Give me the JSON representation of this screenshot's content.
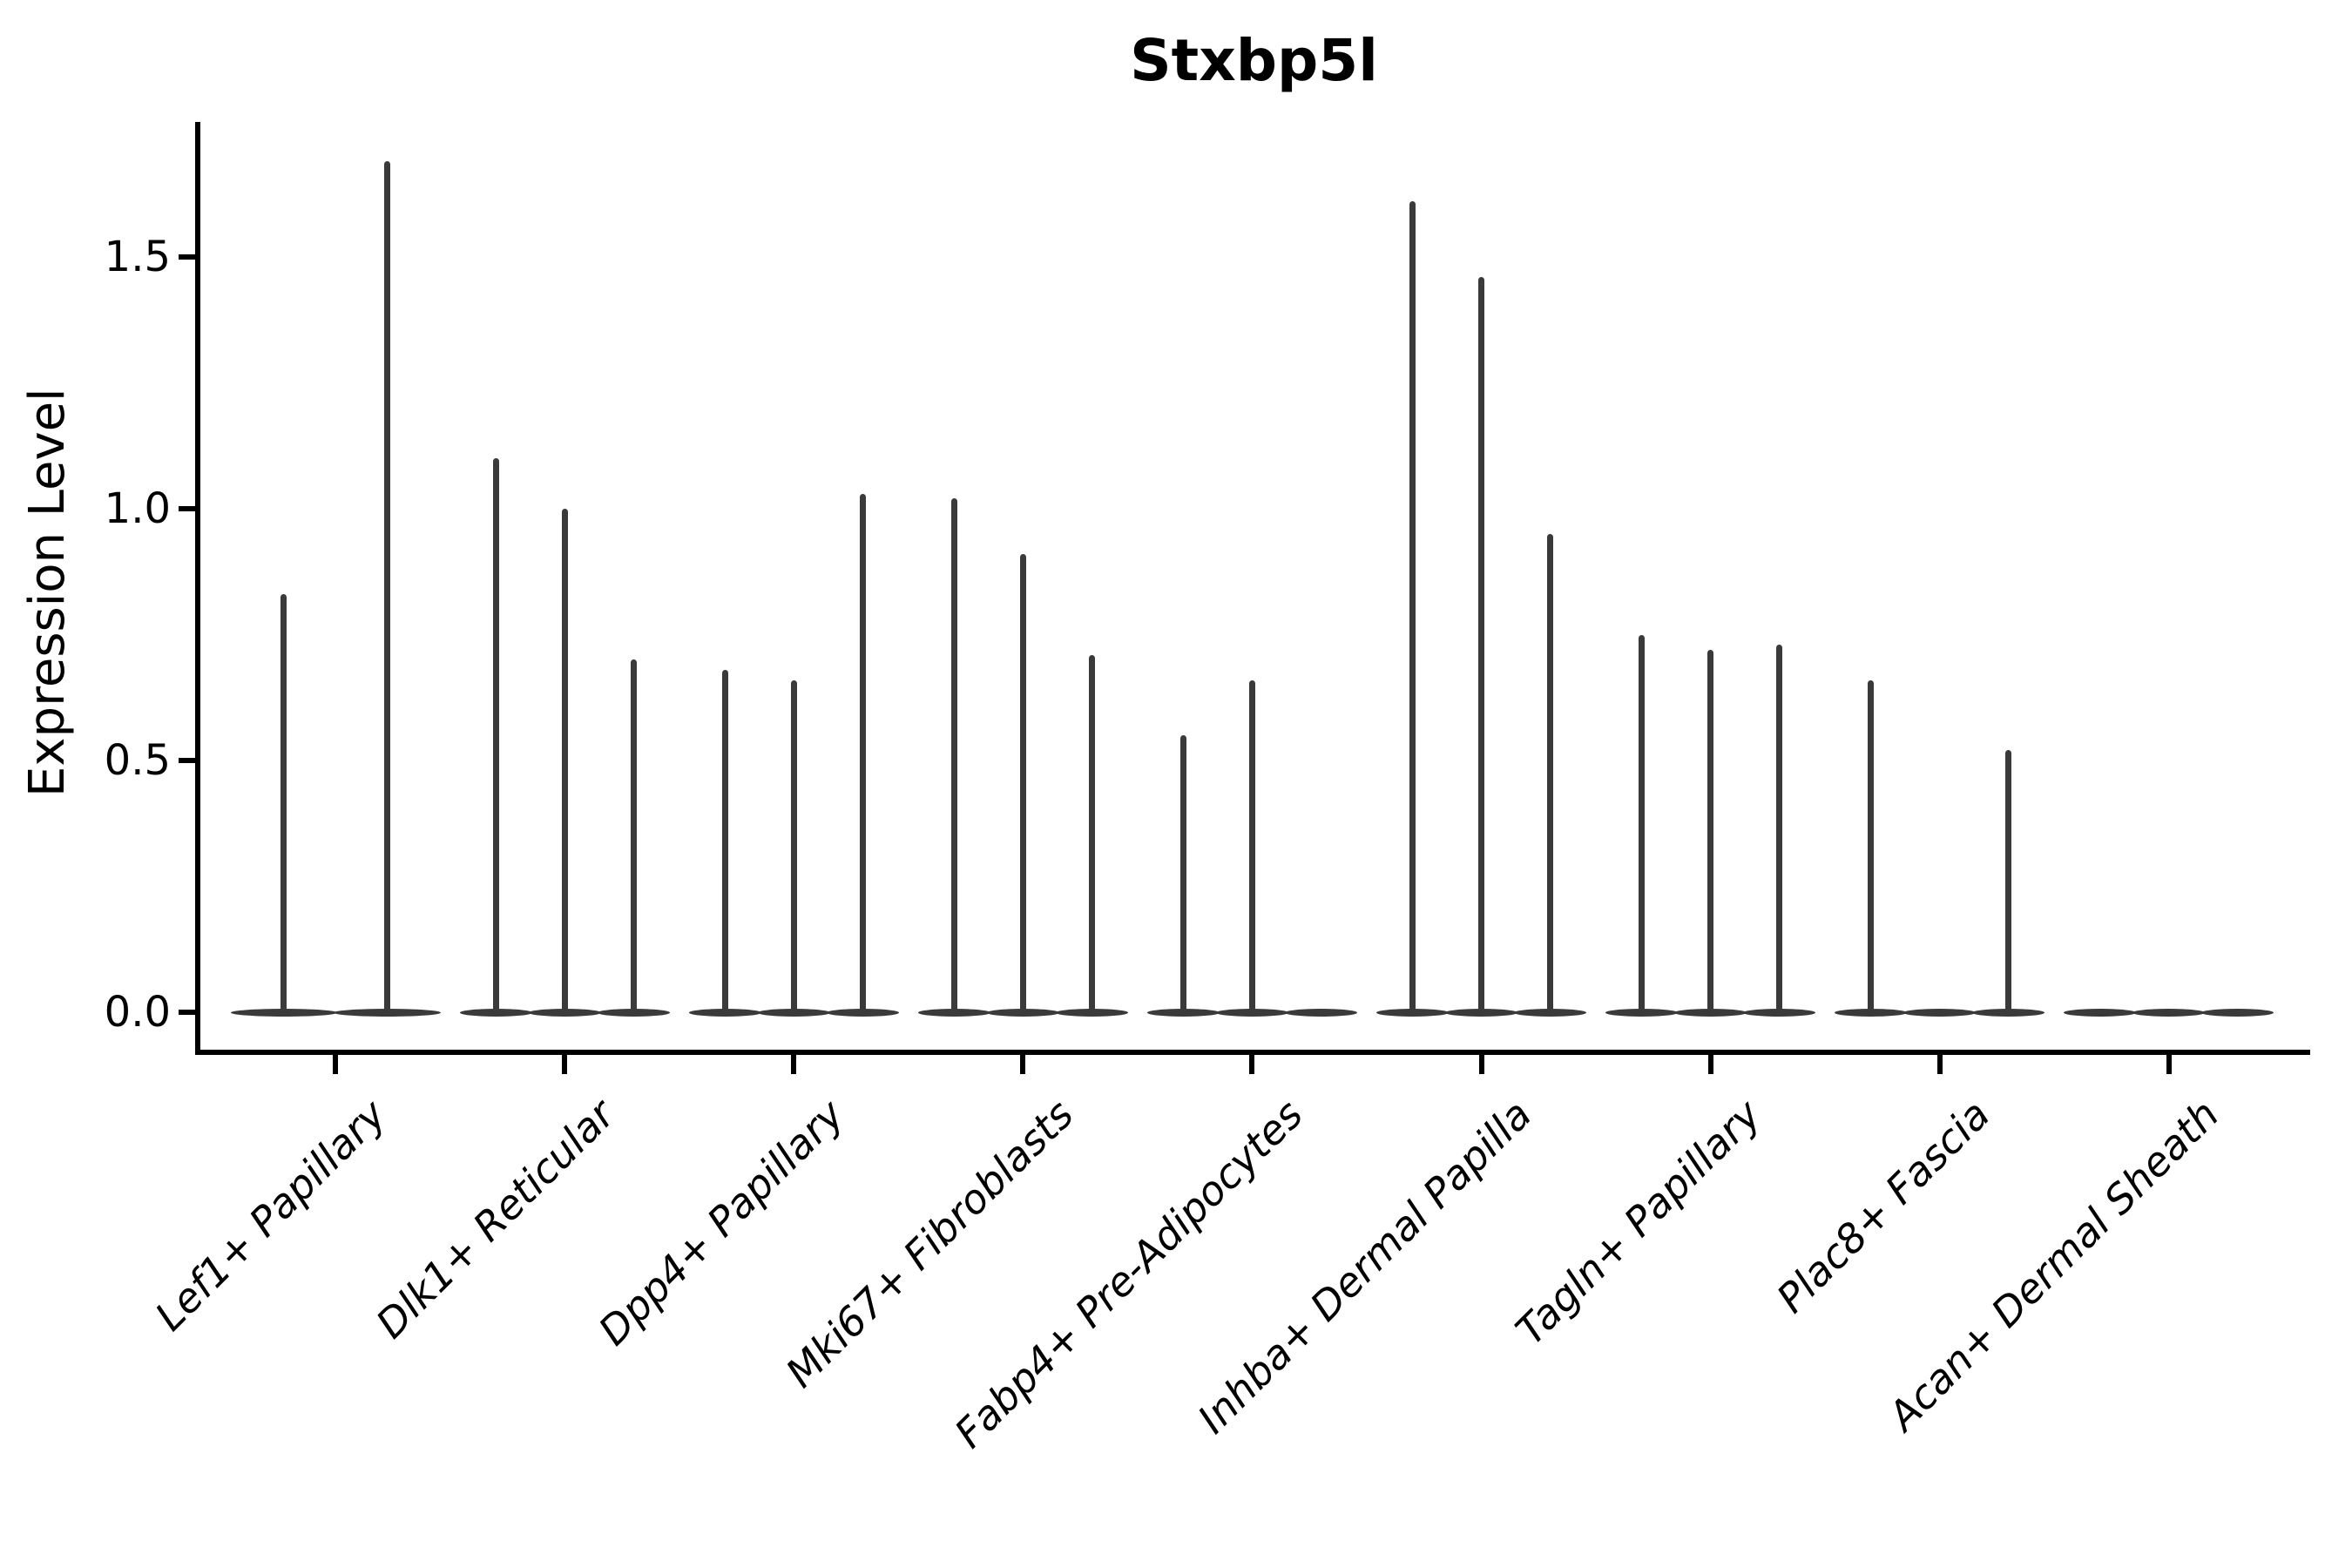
{
  "title": "Stxbp5l",
  "y_axis": {
    "label": "Expression Level",
    "tick_labels": [
      "0.0",
      "0.5",
      "1.0",
      "1.5"
    ]
  },
  "x_axis": {
    "tick_labels": [
      "Lef1+ Papillary",
      "Dlk1+ Reticular",
      "Dpp4+ Papillary",
      "Mki67+ Fibroblasts",
      "Fabp4+ Pre-Adipocytes",
      "Inhba+ Dermal Papilla",
      "Tagln+ Papillary",
      "Plac8+ Fascia",
      "Acan+ Dermal Sheath"
    ]
  },
  "chart_data": {
    "type": "violin",
    "title": "Stxbp5l",
    "xlabel": "",
    "ylabel": "Expression Level",
    "ylim": [
      -0.08,
      1.77
    ],
    "yticks": [
      0.0,
      0.5,
      1.0,
      1.5
    ],
    "grid": false,
    "legend": "none",
    "categories": [
      "Lef1+ Papillary",
      "Dlk1+ Reticular",
      "Dpp4+ Papillary",
      "Mki67+ Fibroblasts",
      "Fabp4+ Pre-Adipocytes",
      "Inhba+ Dermal Papilla",
      "Tagln+ Papillary",
      "Plac8+ Fascia",
      "Acan+ Dermal Sheath"
    ],
    "series": [
      {
        "category": "Lef1+ Papillary",
        "n_violins": 2,
        "spike_max_expression": [
          0.83,
          1.69
        ]
      },
      {
        "category": "Dlk1+ Reticular",
        "n_violins": 3,
        "spike_max_expression": [
          1.1,
          1.0,
          0.7
        ]
      },
      {
        "category": "Dpp4+ Papillary",
        "n_violins": 3,
        "spike_max_expression": [
          0.68,
          0.66,
          1.03
        ]
      },
      {
        "category": "Mki67+ Fibroblasts",
        "n_violins": 3,
        "spike_max_expression": [
          1.02,
          0.91,
          0.71
        ]
      },
      {
        "category": "Fabp4+ Pre-Adipocytes",
        "n_violins": 3,
        "spike_max_expression": [
          0.55,
          0.66,
          0
        ]
      },
      {
        "category": "Inhba+ Dermal Papilla",
        "n_violins": 3,
        "spike_max_expression": [
          1.61,
          1.46,
          0.95
        ]
      },
      {
        "category": "Tagln+ Papillary",
        "n_violins": 3,
        "spike_max_expression": [
          0.75,
          0.72,
          0.73
        ]
      },
      {
        "category": "Plac8+ Fascia",
        "n_violins": 3,
        "spike_max_expression": [
          0.66,
          0,
          0.52
        ]
      },
      {
        "category": "Acan+ Dermal Sheath",
        "n_violins": 3,
        "spike_max_expression": [
          0,
          0,
          0
        ]
      }
    ],
    "style": {
      "violin_color": "#3a3a3a",
      "axis_color": "#000000",
      "background": "#ffffff"
    },
    "note": "Expression is mostly zero in every violin: each violin collapses to a flat base lens at 0 with a thin spike reaching its maximum expression value; zero means a fully flat violin."
  }
}
